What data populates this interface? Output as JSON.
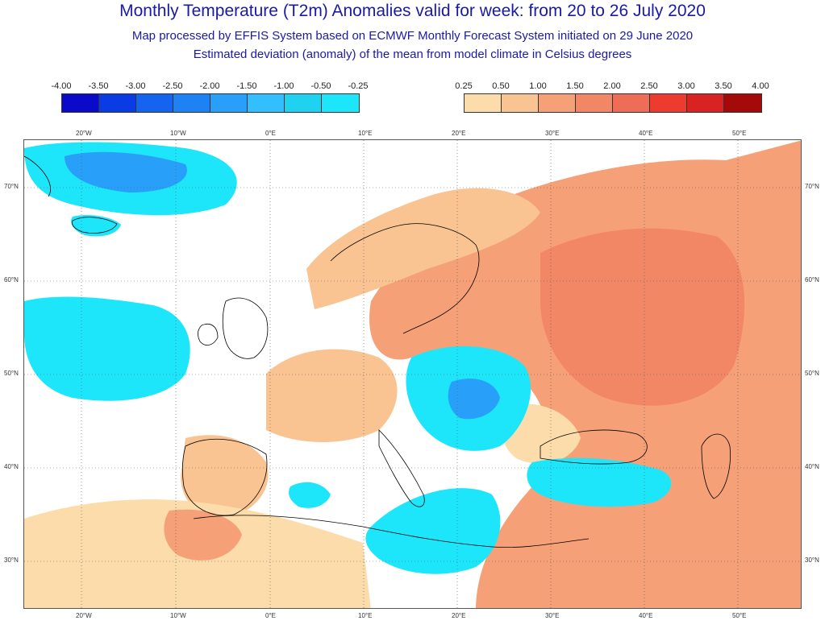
{
  "header": {
    "title": "Monthly Temperature (T2m) Anomalies valid for week: from 20 to 26 July 2020",
    "subtitle": "Map processed by EFFIS System based on ECMWF Monthly Forecast System initiated on 29 June 2020",
    "description": "Estimated deviation (anomaly) of the mean from model climate in Celsius degrees"
  },
  "legend_negative": {
    "labels": [
      "-4.00",
      "-3.50",
      "-3.00",
      "-2.50",
      "-2.00",
      "-1.50",
      "-1.00",
      "-0.50",
      "-0.25"
    ],
    "colors": [
      "#0a0ac8",
      "#0a3ce6",
      "#1464f0",
      "#1e82f5",
      "#28a0fa",
      "#32beff",
      "#1ed2f0",
      "#1ee6fa"
    ]
  },
  "legend_positive": {
    "labels": [
      "0.25",
      "0.50",
      "1.00",
      "1.50",
      "2.00",
      "2.50",
      "3.00",
      "3.50",
      "4.00"
    ],
    "colors": [
      "#fcdcaa",
      "#f9c392",
      "#f5a077",
      "#f28765",
      "#ef6c57",
      "#ec3c30",
      "#d92322",
      "#a50a0a"
    ]
  },
  "map": {
    "longitude_labels": [
      "20°W",
      "10°W",
      "0°E",
      "10°E",
      "20°E",
      "30°E",
      "40°E",
      "50°E"
    ],
    "latitude_labels": [
      "70°N",
      "60°N",
      "50°N",
      "40°N",
      "30°N"
    ],
    "colors": {
      "cold_light": "#1ee6fa",
      "cold_mid": "#28a0fa",
      "cold_deep": "#1464f0",
      "warm_light": "#fcdcaa",
      "warm_mid": "#f9c392",
      "warm_strong": "#f5a077",
      "warm_stronger": "#f28765",
      "coastline": "#000000"
    }
  }
}
